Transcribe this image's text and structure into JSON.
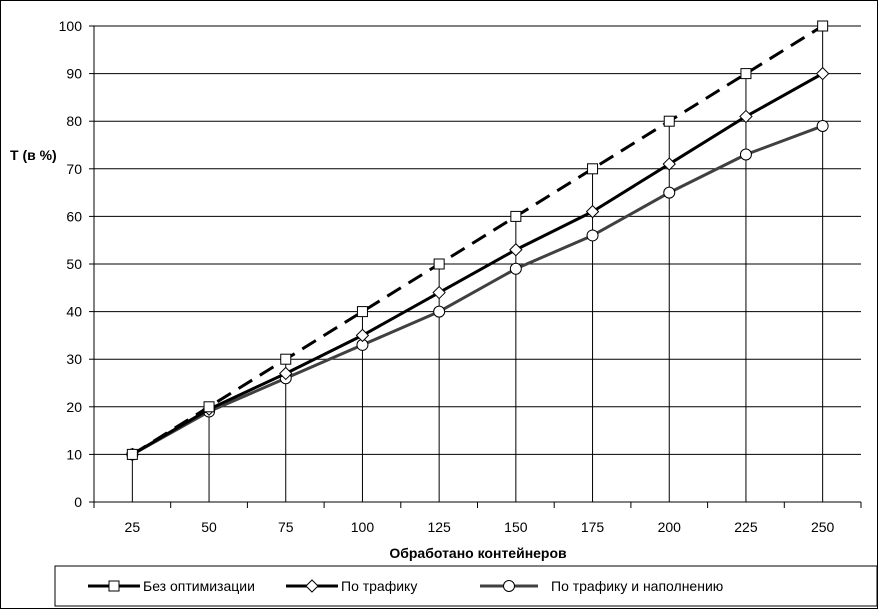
{
  "chart_data": {
    "type": "line",
    "title": "",
    "xlabel": "Обработано контейнеров",
    "ylabel": "T (в %)",
    "categories": [
      "25",
      "50",
      "75",
      "100",
      "125",
      "150",
      "175",
      "200",
      "225",
      "250"
    ],
    "ylim": [
      0,
      100
    ],
    "yticks": [
      0,
      10,
      20,
      30,
      40,
      50,
      60,
      70,
      80,
      90,
      100
    ],
    "grid": true,
    "legend_position": "bottom",
    "series": [
      {
        "name": "Без оптимизации",
        "values": [
          10,
          20,
          30,
          40,
          50,
          60,
          70,
          80,
          90,
          100
        ],
        "marker": "square",
        "line_style": "dashed",
        "color": "#000000"
      },
      {
        "name": "По трафику",
        "values": [
          10,
          19.5,
          27,
          35,
          44,
          53,
          61,
          71,
          81,
          90
        ],
        "marker": "diamond",
        "line_style": "solid",
        "color": "#000000"
      },
      {
        "name": "По трафику и наполнению",
        "values": [
          10,
          19,
          26,
          33,
          40,
          49,
          56,
          65,
          73,
          79
        ],
        "marker": "circle",
        "line_style": "solid",
        "color": "#404040"
      }
    ]
  }
}
